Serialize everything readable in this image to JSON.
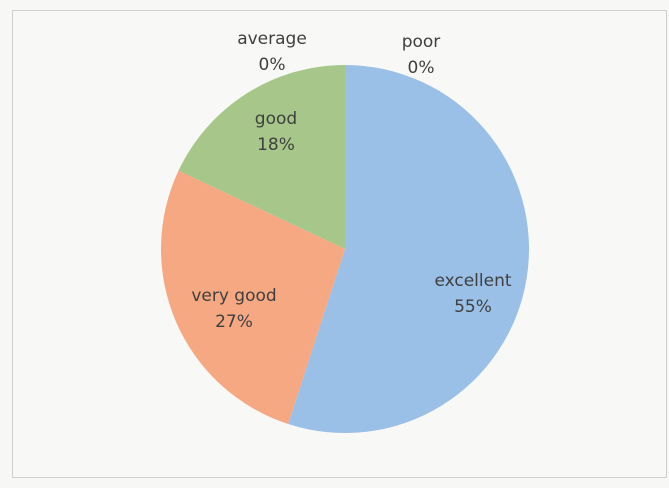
{
  "chart_data": {
    "type": "pie",
    "title": "",
    "slices": [
      {
        "label": "excellent",
        "value": 55,
        "percent_label": "55%",
        "color": "#9ac0e8"
      },
      {
        "label": "very good",
        "value": 27,
        "percent_label": "27%",
        "color": "#f5a882"
      },
      {
        "label": "good",
        "value": 18,
        "percent_label": "18%",
        "color": "#a7c78a"
      },
      {
        "label": "average",
        "value": 0,
        "percent_label": "0%",
        "color": "#d9d9d9"
      },
      {
        "label": "poor",
        "value": 0,
        "percent_label": "0%",
        "color": "#ffd966"
      }
    ],
    "start_angle_deg": 0,
    "direction": "clockwise",
    "legend": "none",
    "data_labels": "category and percentage"
  }
}
